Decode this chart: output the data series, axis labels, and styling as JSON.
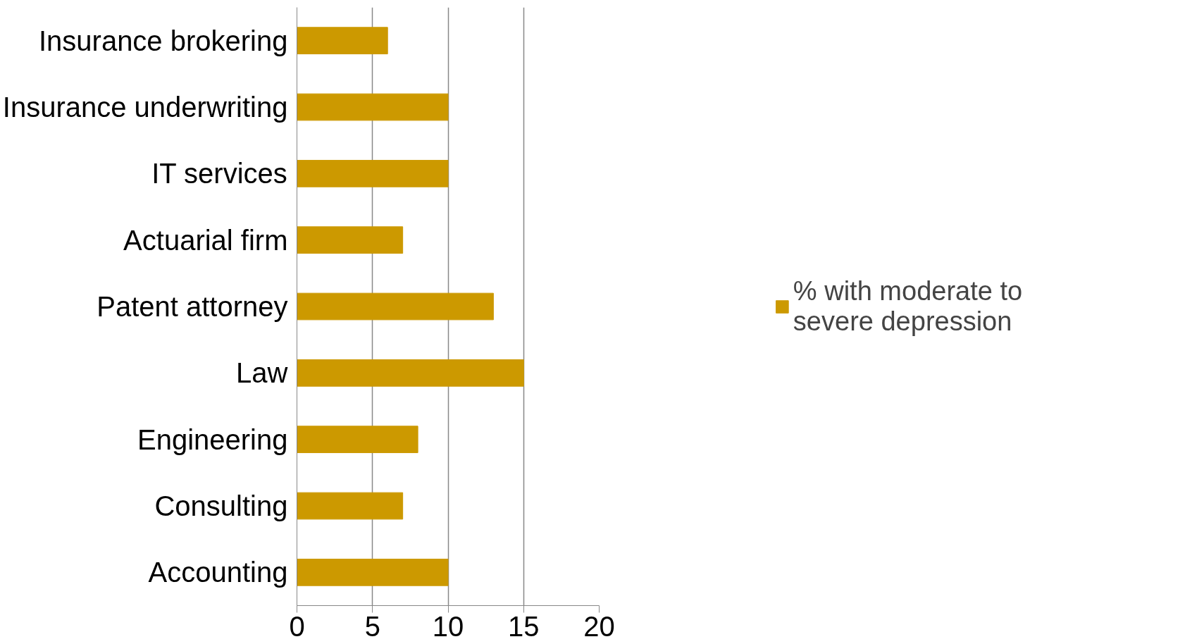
{
  "chart_data": {
    "type": "bar",
    "orientation": "horizontal",
    "categories": [
      "Insurance brokering",
      "Insurance underwriting",
      "IT services",
      "Actuarial firm",
      "Patent attorney",
      "Law",
      "Engineering",
      "Consulting",
      "Accounting"
    ],
    "series": [
      {
        "name": "% with moderate to severe depression",
        "color": "#cc9900",
        "values": [
          6,
          10,
          10,
          7,
          13,
          15,
          8,
          7,
          10
        ]
      }
    ],
    "xlim": [
      0,
      20
    ],
    "xticks": [
      0,
      5,
      10,
      15,
      20
    ],
    "grid": "x",
    "legend": "right"
  }
}
